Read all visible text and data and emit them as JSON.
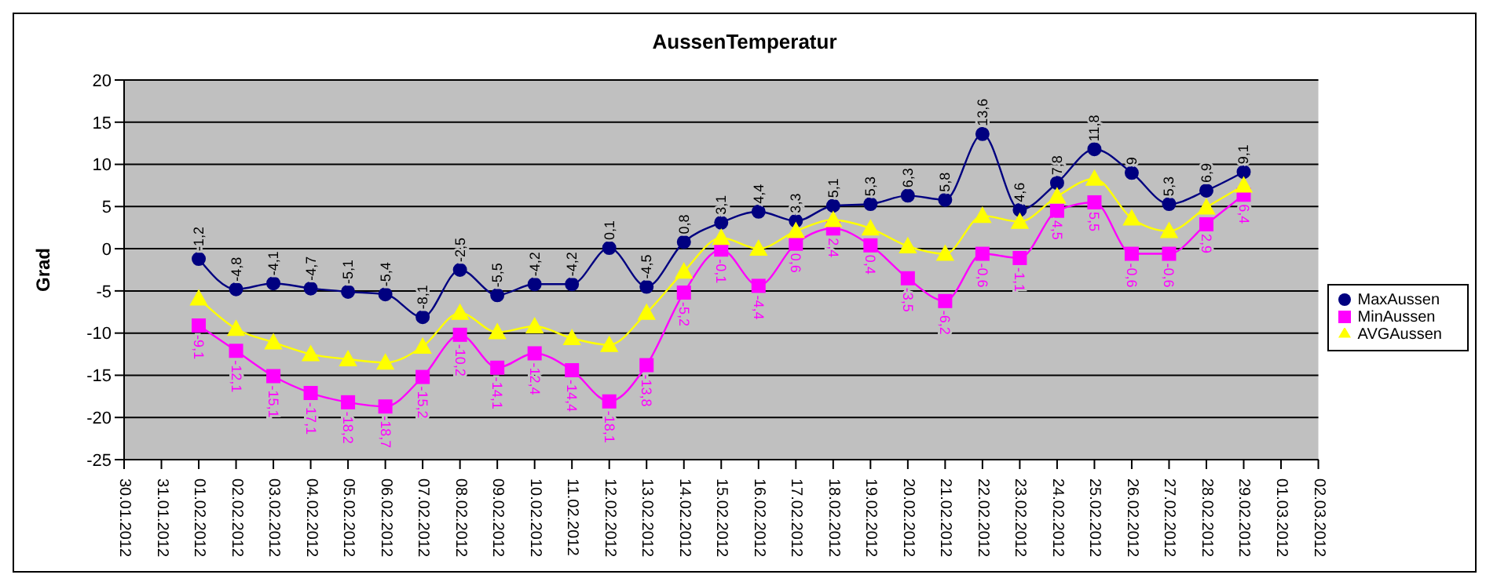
{
  "chart_data": {
    "type": "line",
    "title": "AussenTemperatur",
    "ylabel": "Grad",
    "categories": [
      "30.01.2012",
      "31.01.2012",
      "01.02.2012",
      "02.02.2012",
      "03.02.2012",
      "04.02.2012",
      "05.02.2012",
      "06.02.2012",
      "07.02.2012",
      "08.02.2012",
      "09.02.2012",
      "10.02.2012",
      "11.02.2012",
      "12.02.2012",
      "13.02.2012",
      "14.02.2012",
      "15.02.2012",
      "16.02.2012",
      "17.02.2012",
      "18.02.2012",
      "19.02.2012",
      "20.02.2012",
      "21.02.2012",
      "22.02.2012",
      "23.02.2012",
      "24.02.2012",
      "25.02.2012",
      "26.02.2012",
      "27.02.2012",
      "28.02.2012",
      "29.02.2012",
      "01.03.2012",
      "02.03.2012"
    ],
    "series": [
      {
        "name": "MaxAussen",
        "color": "#000080",
        "marker": "circle",
        "values": [
          null,
          null,
          -1.2,
          -4.8,
          -4.1,
          -4.7,
          -5.1,
          -5.4,
          -8.1,
          -2.5,
          -5.5,
          -4.2,
          -4.2,
          0.1,
          -4.5,
          0.8,
          3.1,
          4.4,
          3.3,
          5.1,
          5.3,
          6.3,
          5.8,
          13.6,
          4.6,
          7.8,
          11.8,
          9,
          5.3,
          6.9,
          9.1,
          null,
          null
        ],
        "value_labels": [
          null,
          null,
          "-1,2",
          "-4,8",
          "-4,1",
          "-4,7",
          "-5,1",
          "-5,4",
          "-8,1",
          "-2,5",
          "-5,5",
          "-4,2",
          "-4,2",
          "0,1",
          "-4,5",
          "0,8",
          "3,1",
          "4,4",
          "3,3",
          "5,1",
          "5,3",
          "6,3",
          "5,8",
          "13,6",
          "4,6",
          "7,8",
          "11,8",
          "9",
          "5,3",
          "6,9",
          "9,1",
          null,
          null
        ]
      },
      {
        "name": "MinAussen",
        "color": "#ff00ff",
        "marker": "square",
        "values": [
          null,
          null,
          -9.1,
          -12.1,
          -15.1,
          -17.1,
          -18.2,
          -18.7,
          -15.2,
          -10.2,
          -14.1,
          -12.4,
          -14.4,
          -18.1,
          -13.8,
          -5.2,
          -0.1,
          -4.4,
          0.6,
          2.4,
          0.4,
          -3.5,
          -6.2,
          -0.6,
          -1.1,
          4.5,
          5.5,
          -0.6,
          -0.6,
          2.9,
          6.4,
          null,
          null
        ],
        "value_labels": [
          null,
          null,
          "-9,1",
          "-12,1",
          "-15,1",
          "-17,1",
          "-18,2",
          "-18,7",
          "-15,2",
          "-10,2",
          "-14,1",
          "-12,4",
          "-14,4",
          "-18,1",
          "-13,8",
          "-5,2",
          "-0,1",
          "-4,4",
          "0,6",
          "2,4",
          "0,4",
          "-3,5",
          "-6,2",
          "-0,6",
          "-1,1",
          "4,5",
          "5,5",
          "-0,6",
          "-0,6",
          "2,9",
          "6,4",
          null,
          null
        ]
      },
      {
        "name": "AVGAussen",
        "color": "#ffff00",
        "marker": "triangle",
        "values": [
          null,
          null,
          -5.9,
          -9.5,
          -11.1,
          -12.5,
          -13.1,
          -13.5,
          -11.6,
          -7.6,
          -9.9,
          -9.2,
          -10.6,
          -11.4,
          -7.6,
          -2.7,
          1.3,
          0,
          2.1,
          3.4,
          2.4,
          0.3,
          -0.6,
          3.9,
          3.2,
          6.2,
          8.3,
          3.6,
          2.1,
          4.9,
          7.5,
          null,
          null
        ]
      }
    ],
    "ylim": [
      -25,
      20
    ],
    "yticks": [
      -25,
      -20,
      -15,
      -10,
      -5,
      0,
      5,
      10,
      15,
      20
    ],
    "grid": "y",
    "legend": "right"
  }
}
